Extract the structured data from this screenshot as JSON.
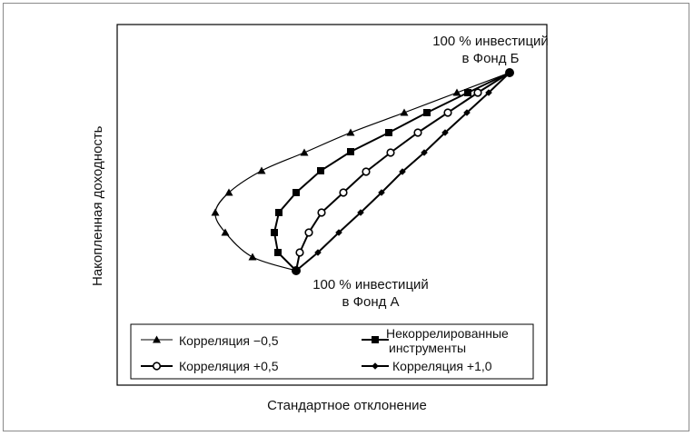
{
  "chart_data": {
    "type": "line",
    "title": "",
    "xlabel": "Стандартное отклонение",
    "ylabel": "Накопленная доходность",
    "grid": false,
    "legend_position": "bottom",
    "axis_ticks": "none",
    "annotations": {
      "fund_a": [
        "100 % инвестиций",
        "в Фонд А"
      ],
      "fund_b": [
        "100 % инвестиций",
        "в Фонд Б"
      ]
    },
    "series": [
      {
        "name": "Корреляция −0,5",
        "marker": "triangle",
        "color": "#000000",
        "points": [
          [
            326,
            298
          ],
          [
            278,
            283
          ],
          [
            248,
            256
          ],
          [
            237,
            234
          ],
          [
            252,
            212
          ],
          [
            288,
            188
          ],
          [
            335,
            168
          ],
          [
            386,
            146
          ],
          [
            445,
            124
          ],
          [
            503,
            102
          ],
          [
            561,
            80
          ]
        ]
      },
      {
        "name": "Некоррелированные инструменты",
        "marker": "square",
        "color": "#000000",
        "points": [
          [
            326,
            298
          ],
          [
            306,
            278
          ],
          [
            302,
            256
          ],
          [
            307,
            234
          ],
          [
            326,
            212
          ],
          [
            353,
            188
          ],
          [
            386,
            167
          ],
          [
            428,
            146
          ],
          [
            470,
            124
          ],
          [
            515,
            102
          ],
          [
            561,
            80
          ]
        ]
      },
      {
        "name": "Корреляция +0,5",
        "marker": "circle",
        "color": "#000000",
        "points": [
          [
            326,
            298
          ],
          [
            330,
            278
          ],
          [
            340,
            256
          ],
          [
            354,
            234
          ],
          [
            378,
            212
          ],
          [
            403,
            189
          ],
          [
            430,
            168
          ],
          [
            460,
            146
          ],
          [
            493,
            124
          ],
          [
            526,
            102
          ],
          [
            561,
            80
          ]
        ]
      },
      {
        "name": "Корреляция +1,0",
        "marker": "diamond",
        "color": "#000000",
        "points": [
          [
            326,
            298
          ],
          [
            350,
            278
          ],
          [
            373,
            256
          ],
          [
            397,
            234
          ],
          [
            420,
            212
          ],
          [
            443,
            189
          ],
          [
            467,
            168
          ],
          [
            490,
            146
          ],
          [
            514,
            124
          ],
          [
            538,
            102
          ],
          [
            561,
            80
          ]
        ]
      }
    ]
  },
  "legend": {
    "items": [
      {
        "label": "Корреляция −0,5"
      },
      {
        "label_line1": "Некоррелированные",
        "label_line2": "инструменты"
      },
      {
        "label": "Корреляция +0,5"
      },
      {
        "label": "Корреляция +1,0"
      }
    ]
  }
}
